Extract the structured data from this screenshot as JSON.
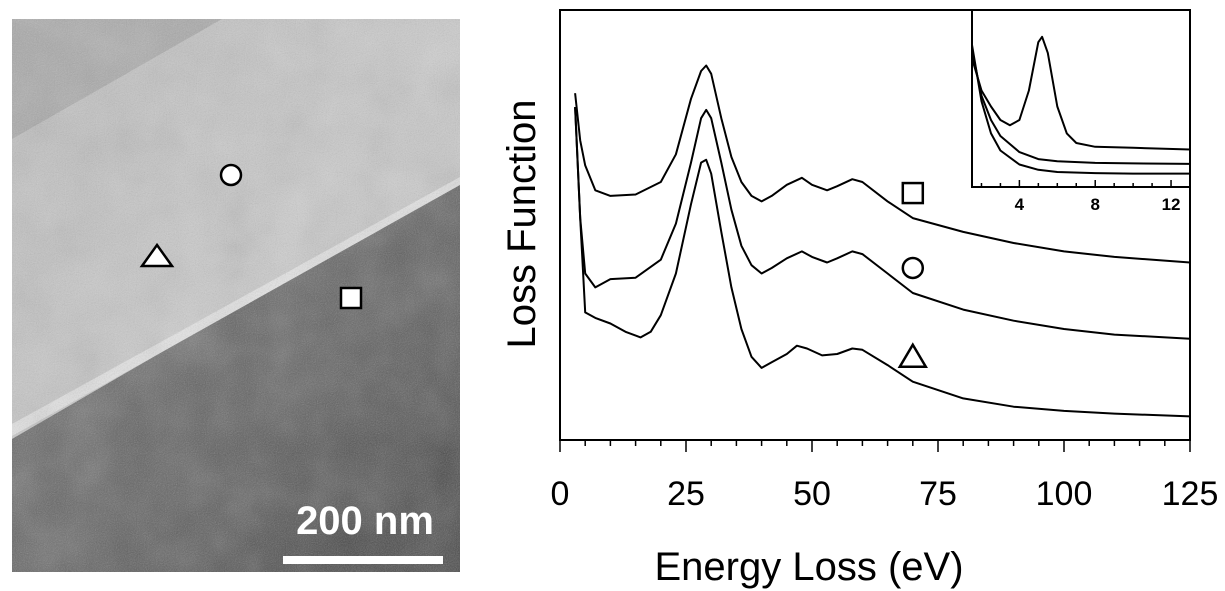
{
  "micrograph": {
    "scale_bar_label": "200 nm",
    "markers": [
      {
        "shape": "circle",
        "region": "upper band"
      },
      {
        "shape": "triangle",
        "region": "middle band"
      },
      {
        "shape": "square",
        "region": "lower dark region"
      }
    ],
    "colors": {
      "bright_band": "#c6c6c6",
      "dark_region": "#585858",
      "edge": "#e9e9e9"
    }
  },
  "chart_data": {
    "type": "line",
    "title": "",
    "xlabel": "Energy Loss (eV)",
    "ylabel": "Loss Function",
    "xlim": [
      0,
      125
    ],
    "x_ticks": [
      0,
      25,
      50,
      75,
      100,
      125
    ],
    "y_ticks_labeled": false,
    "grid": false,
    "series": [
      {
        "marker": "square",
        "points": [
          [
            3,
            16.5
          ],
          [
            4,
            14.8
          ],
          [
            5,
            13.9
          ],
          [
            7,
            13.0
          ],
          [
            10,
            12.8
          ],
          [
            15,
            12.85
          ],
          [
            20,
            13.3
          ],
          [
            23,
            14.3
          ],
          [
            26,
            16.3
          ],
          [
            28,
            17.3
          ],
          [
            29,
            17.5
          ],
          [
            30,
            17.2
          ],
          [
            32,
            15.6
          ],
          [
            34,
            14.2
          ],
          [
            36,
            13.3
          ],
          [
            38,
            12.8
          ],
          [
            40,
            12.6
          ],
          [
            42,
            12.8
          ],
          [
            45,
            13.2
          ],
          [
            48,
            13.45
          ],
          [
            50,
            13.2
          ],
          [
            53,
            13.0
          ],
          [
            55,
            13.15
          ],
          [
            58,
            13.4
          ],
          [
            60,
            13.3
          ],
          [
            65,
            12.6
          ],
          [
            70,
            12.0
          ],
          [
            80,
            11.5
          ],
          [
            90,
            11.1
          ],
          [
            100,
            10.8
          ],
          [
            110,
            10.6
          ],
          [
            125,
            10.4
          ]
        ]
      },
      {
        "marker": "circle",
        "points": [
          [
            3,
            16.0
          ],
          [
            4,
            12.0
          ],
          [
            5,
            10.0
          ],
          [
            7,
            9.5
          ],
          [
            10,
            9.8
          ],
          [
            15,
            9.85
          ],
          [
            20,
            10.5
          ],
          [
            23,
            11.8
          ],
          [
            26,
            14.0
          ],
          [
            28,
            15.6
          ],
          [
            29,
            15.9
          ],
          [
            30,
            15.6
          ],
          [
            32,
            14.0
          ],
          [
            34,
            12.3
          ],
          [
            36,
            11.0
          ],
          [
            38,
            10.3
          ],
          [
            40,
            10.0
          ],
          [
            42,
            10.2
          ],
          [
            45,
            10.55
          ],
          [
            48,
            10.8
          ],
          [
            50,
            10.6
          ],
          [
            53,
            10.4
          ],
          [
            55,
            10.55
          ],
          [
            58,
            10.8
          ],
          [
            60,
            10.7
          ],
          [
            65,
            10.0
          ],
          [
            70,
            9.3
          ],
          [
            80,
            8.7
          ],
          [
            90,
            8.3
          ],
          [
            100,
            8.0
          ],
          [
            110,
            7.8
          ],
          [
            125,
            7.65
          ]
        ]
      },
      {
        "marker": "triangle",
        "points": [
          [
            3,
            16.0
          ],
          [
            4,
            12.0
          ],
          [
            5,
            8.6
          ],
          [
            7,
            8.4
          ],
          [
            10,
            8.2
          ],
          [
            13,
            7.9
          ],
          [
            16,
            7.7
          ],
          [
            18,
            7.9
          ],
          [
            20,
            8.5
          ],
          [
            23,
            10.0
          ],
          [
            26,
            12.5
          ],
          [
            28,
            14.0
          ],
          [
            29,
            14.1
          ],
          [
            30,
            13.6
          ],
          [
            32,
            11.5
          ],
          [
            34,
            9.5
          ],
          [
            36,
            8.0
          ],
          [
            38,
            7.0
          ],
          [
            40,
            6.6
          ],
          [
            42,
            6.8
          ],
          [
            45,
            7.1
          ],
          [
            47,
            7.4
          ],
          [
            49,
            7.3
          ],
          [
            52,
            7.05
          ],
          [
            55,
            7.1
          ],
          [
            58,
            7.3
          ],
          [
            60,
            7.25
          ],
          [
            65,
            6.7
          ],
          [
            70,
            6.1
          ],
          [
            80,
            5.5
          ],
          [
            90,
            5.2
          ],
          [
            100,
            5.05
          ],
          [
            110,
            4.95
          ],
          [
            125,
            4.85
          ]
        ]
      }
    ],
    "inset": {
      "x_ticks": [
        4,
        8,
        12
      ],
      "xlim": [
        1.5,
        13
      ],
      "series": [
        {
          "points": [
            [
              1.5,
              2.7
            ],
            [
              2,
              2.1
            ],
            [
              2.5,
              1.8
            ],
            [
              3,
              1.55
            ],
            [
              3.5,
              1.45
            ],
            [
              4,
              1.55
            ],
            [
              4.5,
              2.1
            ],
            [
              5,
              3.0
            ],
            [
              5.2,
              3.1
            ],
            [
              5.5,
              2.8
            ],
            [
              6,
              1.8
            ],
            [
              6.5,
              1.3
            ],
            [
              7,
              1.12
            ],
            [
              8,
              1.05
            ],
            [
              10,
              1.03
            ],
            [
              13,
              1.0
            ]
          ]
        },
        {
          "points": [
            [
              1.5,
              2.85
            ],
            [
              2,
              2.0
            ],
            [
              2.5,
              1.55
            ],
            [
              3,
              1.25
            ],
            [
              4,
              0.95
            ],
            [
              5,
              0.82
            ],
            [
              6,
              0.78
            ],
            [
              8,
              0.75
            ],
            [
              10,
              0.74
            ],
            [
              13,
              0.73
            ]
          ]
        },
        {
          "points": [
            [
              1.5,
              2.95
            ],
            [
              2,
              1.9
            ],
            [
              2.5,
              1.3
            ],
            [
              3,
              0.98
            ],
            [
              4,
              0.72
            ],
            [
              5,
              0.62
            ],
            [
              6,
              0.58
            ],
            [
              8,
              0.56
            ],
            [
              10,
              0.55
            ],
            [
              13,
              0.55
            ]
          ]
        }
      ]
    }
  }
}
